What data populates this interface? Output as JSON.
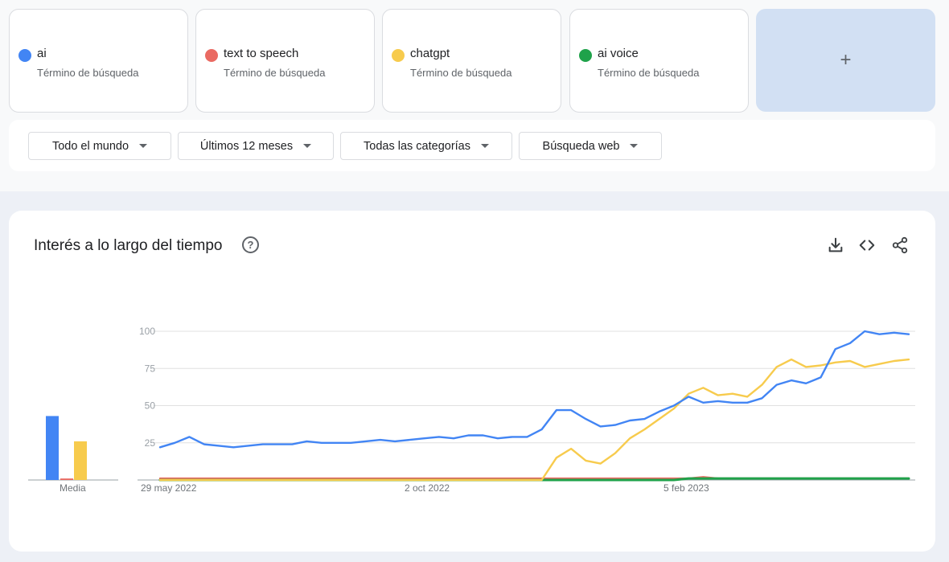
{
  "terms": [
    {
      "name": "ai",
      "subtitle": "Término de búsqueda",
      "color": "#4285f4"
    },
    {
      "name": "text to speech",
      "subtitle": "Término de búsqueda",
      "color": "#ea6a62"
    },
    {
      "name": "chatgpt",
      "subtitle": "Término de búsqueda",
      "color": "#f7cb4d"
    },
    {
      "name": "ai voice",
      "subtitle": "Término de búsqueda",
      "color": "#1fa24a"
    }
  ],
  "add_term": {
    "label": "+"
  },
  "filters": {
    "region": "Todo el mundo",
    "period": "Últimos 12 meses",
    "category": "Todas las categorías",
    "search_type": "Búsqueda web"
  },
  "chart_section": {
    "title": "Interés a lo largo del tiempo",
    "help_icon": "help-circle-icon",
    "actions": [
      "download-icon",
      "embed-code-icon",
      "share-icon"
    ]
  },
  "chart_data": {
    "type": "line",
    "x_ticks": [
      "29 may 2022",
      "2 oct 2022",
      "5 feb 2023"
    ],
    "y_ticks": [
      "100",
      "75",
      "50",
      "25"
    ],
    "ylim": [
      0,
      100
    ],
    "grid": true,
    "average_bars": {
      "label": "Media",
      "values": [
        {
          "term": "ai",
          "value": 43
        },
        {
          "term": "text to speech",
          "value": 1
        },
        {
          "term": "chatgpt",
          "value": 26
        },
        {
          "term": "ai voice",
          "value": 0
        }
      ]
    },
    "series": [
      {
        "name": "ai",
        "color": "#4285f4",
        "values": [
          22,
          25,
          29,
          24,
          23,
          22,
          23,
          24,
          24,
          24,
          26,
          25,
          25,
          25,
          26,
          27,
          26,
          27,
          28,
          29,
          28,
          30,
          30,
          28,
          29,
          29,
          34,
          47,
          47,
          41,
          36,
          37,
          40,
          41,
          46,
          50,
          56,
          52,
          53,
          52,
          52,
          55,
          64,
          67,
          65,
          69,
          88,
          92,
          100,
          98,
          99,
          98
        ]
      },
      {
        "name": "text to speech",
        "color": "#ea6a62",
        "values": [
          1,
          1,
          1,
          1,
          1,
          1,
          1,
          1,
          1,
          1,
          1,
          1,
          1,
          1,
          1,
          1,
          1,
          1,
          1,
          1,
          1,
          1,
          1,
          1,
          1,
          1,
          1,
          1,
          1,
          1,
          1,
          1,
          1,
          1,
          1,
          1,
          1,
          2,
          1,
          1,
          1,
          1,
          1,
          1,
          1,
          1,
          1,
          1,
          1,
          1,
          1,
          1
        ]
      },
      {
        "name": "chatgpt",
        "color": "#f7cb4d",
        "values": [
          0,
          0,
          0,
          0,
          0,
          0,
          0,
          0,
          0,
          0,
          0,
          0,
          0,
          0,
          0,
          0,
          0,
          0,
          0,
          0,
          0,
          0,
          0,
          0,
          0,
          0,
          0,
          15,
          21,
          13,
          11,
          18,
          28,
          34,
          41,
          48,
          58,
          62,
          57,
          58,
          56,
          64,
          76,
          81,
          76,
          77,
          79,
          80,
          76,
          78,
          80,
          81
        ]
      },
      {
        "name": "ai voice",
        "color": "#1fa24a",
        "values": [
          0,
          0,
          0,
          0,
          0,
          0,
          0,
          0,
          0,
          0,
          0,
          0,
          0,
          0,
          0,
          0,
          0,
          0,
          0,
          0,
          0,
          0,
          0,
          0,
          0,
          0,
          0,
          0,
          0,
          0,
          0,
          0,
          0,
          0,
          0,
          0,
          1,
          1,
          1,
          1,
          1,
          1,
          1,
          1,
          1,
          1,
          1,
          1,
          1,
          1,
          1,
          1
        ]
      }
    ]
  }
}
